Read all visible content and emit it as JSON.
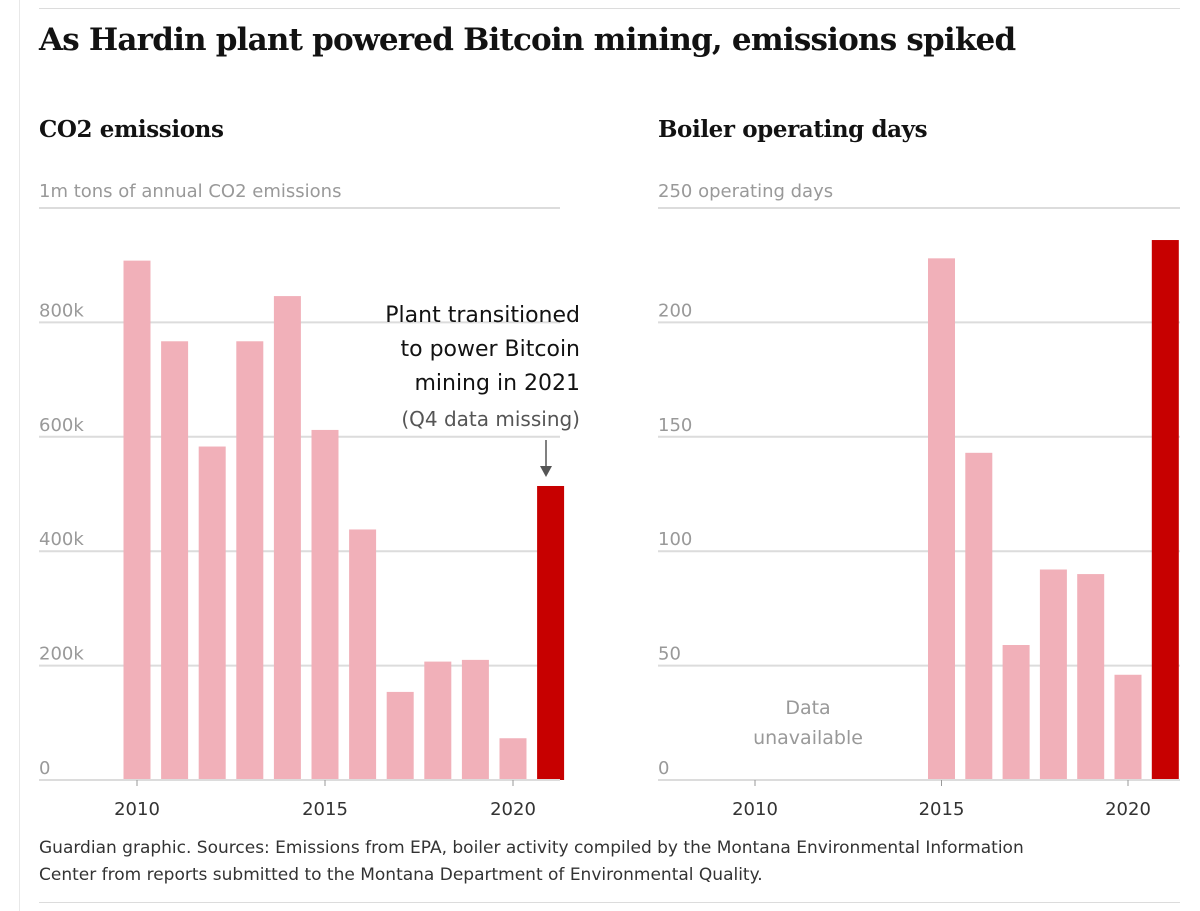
{
  "headline": "As Hardin plant powered Bitcoin mining, emissions spiked",
  "colors": {
    "bar": "#f1b0b9",
    "highlight": "#c70000",
    "grid": "#dcdcdc",
    "axis_text": "#999999",
    "text": "#121212"
  },
  "chart_data": [
    {
      "type": "bar",
      "title": "CO2 emissions",
      "subtitle": "1m tons of annual CO2 emissions",
      "x": [
        2010,
        2011,
        2012,
        2013,
        2014,
        2015,
        2016,
        2017,
        2018,
        2019,
        2020,
        2021
      ],
      "values": [
        908000,
        767000,
        583000,
        767000,
        846000,
        612000,
        438000,
        154000,
        207000,
        210000,
        73000,
        514000
      ],
      "highlight_x": 2021,
      "ylim": [
        0,
        1000000
      ],
      "yticks": [
        0,
        200000,
        400000,
        600000,
        800000
      ],
      "ytick_labels": [
        "0",
        "200k",
        "400k",
        "600k",
        "800k"
      ],
      "xticks": [
        2010,
        2015,
        2020
      ],
      "xtick_labels": [
        "2010",
        "2015",
        "2020"
      ],
      "annotation": {
        "lines": [
          "Plant transitioned",
          "to power Bitcoin",
          "mining in 2021"
        ],
        "note": "(Q4 data missing)"
      }
    },
    {
      "type": "bar",
      "title": "Boiler operating days",
      "subtitle": "250 operating days",
      "x": [
        2015,
        2016,
        2017,
        2018,
        2019,
        2020,
        2021
      ],
      "values": [
        228,
        143,
        59,
        92,
        90,
        46,
        236
      ],
      "highlight_x": 2021,
      "ylim": [
        0,
        250
      ],
      "yticks": [
        0,
        50,
        100,
        150,
        200
      ],
      "ytick_labels": [
        "0",
        "50",
        "100",
        "150",
        "200"
      ],
      "xticks": [
        2010,
        2015,
        2020
      ],
      "xtick_labels": [
        "2010",
        "2015",
        "2020"
      ],
      "annotation": {
        "lines": [
          "Data",
          "unavailable"
        ]
      }
    }
  ],
  "footer": {
    "line1": "Guardian graphic. Sources: Emissions from EPA, boiler activity compiled by the Montana Environmental Information",
    "line2": "Center from reports submitted to the Montana Department of Environmental Quality."
  }
}
